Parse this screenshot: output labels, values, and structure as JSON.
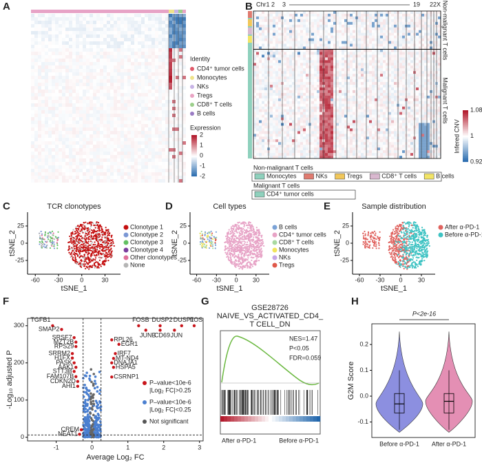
{
  "a": {
    "letter": "A",
    "legend_title": "Identity",
    "legend": [
      {
        "name": "CD4⁺ tumor cells",
        "color": "#e05a6a"
      },
      {
        "name": "Monocytes",
        "color": "#efe38a"
      },
      {
        "name": "NKs",
        "color": "#c8b4e6"
      },
      {
        "name": "Tregs",
        "color": "#e9a4c4"
      },
      {
        "name": "CD8⁺ T cells",
        "color": "#9ccf8c"
      },
      {
        "name": "B cells",
        "color": "#9a7cc4"
      }
    ],
    "colorbar_title": "Expression",
    "colorbar_ticks": [
      2,
      1,
      0,
      -1,
      -2
    ]
  },
  "b": {
    "letter": "B",
    "chromosomes": [
      "Chr1",
      "2",
      "3",
      "19",
      "22",
      "X"
    ],
    "row_labels": [
      "Non-malignant T cells",
      "Malignant T cells"
    ],
    "colorbar_title": "Infered CNV",
    "colorbar_ticks": [
      1.08,
      1,
      0.92
    ],
    "groups": [
      {
        "title": "Non-malignant T cells",
        "items": [
          {
            "name": "Monocytes",
            "color": "#8fd1bd"
          },
          {
            "name": "NKs",
            "color": "#e07b70"
          },
          {
            "name": "Tregs",
            "color": "#f1c75a"
          },
          {
            "name": "CD8⁺ T cells",
            "color": "#d9b8cf"
          },
          {
            "name": "B cells",
            "color": "#f2e466"
          }
        ]
      },
      {
        "title": "Malignant T cells",
        "items": [
          {
            "name": "CD4⁺ tumor cells",
            "color": "#8fd1bd"
          }
        ]
      }
    ]
  },
  "c": {
    "letter": "C",
    "title": "TCR clonotypes",
    "xlabel": "tSNE_1",
    "ylabel": "tSNE_2",
    "xlim": [
      -70,
      50
    ],
    "xticks": [
      -60,
      -30,
      0,
      30
    ],
    "ylim": [
      -45,
      45
    ],
    "yticks": [
      -25,
      0,
      25
    ],
    "legend": [
      {
        "name": "Clonotype 1",
        "color": "#c40f0f"
      },
      {
        "name": "Clonotype 2",
        "color": "#7b97d4"
      },
      {
        "name": "Clonotype 3",
        "color": "#62c062"
      },
      {
        "name": "Clonotype 4",
        "color": "#7c3d9e"
      },
      {
        "name": "Other clonotypes",
        "color": "#e0709a"
      },
      {
        "name": "None",
        "color": "#b5b5b5"
      }
    ]
  },
  "d": {
    "letter": "D",
    "title": "Cell types",
    "xlabel": "tSNE_1",
    "ylabel": "tSNE_2",
    "xlim": [
      -70,
      50
    ],
    "xticks": [
      -60,
      -30,
      0,
      30
    ],
    "ylim": [
      -45,
      45
    ],
    "yticks": [
      -25,
      0,
      25
    ],
    "legend": [
      {
        "name": "B cells",
        "color": "#7aa2d6"
      },
      {
        "name": "CD4⁺ tumor cells",
        "color": "#e7a3c6"
      },
      {
        "name": "CD8⁺ T cells",
        "color": "#a9d9a0"
      },
      {
        "name": "Monocytes",
        "color": "#f1e45c"
      },
      {
        "name": "NKs",
        "color": "#c5a6e6"
      },
      {
        "name": "Tregs",
        "color": "#e0584a"
      }
    ]
  },
  "e": {
    "letter": "E",
    "title": "Sample distribution",
    "xlabel": "tSNE_1",
    "ylabel": "tSNE_2",
    "xlim": [
      -70,
      50
    ],
    "xticks": [
      -60,
      -30,
      0,
      30
    ],
    "ylim": [
      -45,
      45
    ],
    "yticks": [
      -25,
      0,
      25
    ],
    "legend": [
      {
        "name": "After α-PD-1",
        "color": "#e0625e"
      },
      {
        "name": "Before α-PD-1",
        "color": "#3ec3c3"
      }
    ]
  },
  "f": {
    "letter": "F",
    "xlabel": "Average Log₂ FC",
    "ylabel": "-Log₁₀ adjusted P",
    "xlim": [
      -1.8,
      3.1
    ],
    "xticks": [
      -1,
      0,
      1,
      2,
      3
    ],
    "ylim": [
      -10,
      320
    ],
    "yticks": [
      0,
      100,
      200,
      300
    ],
    "legend": [
      {
        "name": "P–value<10e-6",
        "sub": "|Log₂ FC|>0.25",
        "color": "#c8151b"
      },
      {
        "name": "P–value<10e-6",
        "sub": "|Log₂ FC|<0.25",
        "color": "#4a7fd0"
      },
      {
        "name": "Not significant",
        "sub": "",
        "color": "#555555"
      }
    ],
    "points": [
      {
        "gene": "TGFB1",
        "x": -1.1,
        "y": 300
      },
      {
        "gene": "SMAP2",
        "x": -0.85,
        "y": 290
      },
      {
        "gene": "SRSF7",
        "x": -0.5,
        "y": 268
      },
      {
        "gene": "MZT2B",
        "x": -0.45,
        "y": 256
      },
      {
        "gene": "RPS29",
        "x": -0.45,
        "y": 244
      },
      {
        "gene": "SRRM2",
        "x": -0.55,
        "y": 225
      },
      {
        "gene": "H1FX",
        "x": -0.55,
        "y": 213
      },
      {
        "gene": "PASK",
        "x": -0.5,
        "y": 200
      },
      {
        "gene": "AAK1",
        "x": -0.45,
        "y": 188
      },
      {
        "gene": "STT3B",
        "x": -0.5,
        "y": 177
      },
      {
        "gene": "FAM107B",
        "x": -0.45,
        "y": 163
      },
      {
        "gene": "CDKN2D",
        "x": -0.4,
        "y": 150
      },
      {
        "gene": "AHI1",
        "x": -0.4,
        "y": 137
      },
      {
        "gene": "CREM",
        "x": -0.3,
        "y": 20
      },
      {
        "gene": "NEAT1",
        "x": -0.35,
        "y": 8
      },
      {
        "gene": "FOSB",
        "x": 1.3,
        "y": 300
      },
      {
        "gene": "DUSP2",
        "x": 1.9,
        "y": 300
      },
      {
        "gene": "DUSP1",
        "x": 2.5,
        "y": 300
      },
      {
        "gene": "FOS",
        "x": 2.85,
        "y": 300
      },
      {
        "gene": "JUNB",
        "x": 1.5,
        "y": 288
      },
      {
        "gene": "CD69",
        "x": 1.9,
        "y": 288
      },
      {
        "gene": "JUN",
        "x": 2.3,
        "y": 288
      },
      {
        "gene": "RPL26",
        "x": 0.55,
        "y": 262
      },
      {
        "gene": "EGR1",
        "x": 0.75,
        "y": 250
      },
      {
        "gene": "IRF7",
        "x": 0.65,
        "y": 225
      },
      {
        "gene": "MT-ND4",
        "x": 0.6,
        "y": 212
      },
      {
        "gene": "DNAJA1",
        "x": 0.55,
        "y": 200
      },
      {
        "gene": "HSPA5",
        "x": 0.6,
        "y": 188
      },
      {
        "gene": "CSRNP1",
        "x": 0.55,
        "y": 162
      }
    ],
    "highlight": [
      "FOSB",
      "DUSP2",
      "DUSP1",
      "FOS",
      "JUNB",
      "CD69",
      "JUN"
    ]
  },
  "g": {
    "letter": "G",
    "title": [
      "GSE28726",
      "NAIVE_VS_ACTIVATED_CD4_",
      "T CELL_DN"
    ],
    "stats": [
      "NES=1.47",
      "P<0.05",
      "FDR=0.059"
    ],
    "left": "After α-PD-1",
    "right": "Before α-PD-1"
  },
  "h": {
    "letter": "H",
    "ylabel": "G2M Score",
    "categories": [
      "Before α-PD-1",
      "After α-PD-1"
    ],
    "colors": [
      "#8c8fe0",
      "#e48fb4"
    ],
    "medians": [
      -0.03,
      -0.02
    ],
    "ylim": [
      -0.16,
      0.28
    ],
    "yticks": [
      -0.1,
      {
        "value": 0,
        "label": "0.0"
      },
      0.1,
      0.2
    ],
    "pvalue": "P<2e-16"
  }
}
